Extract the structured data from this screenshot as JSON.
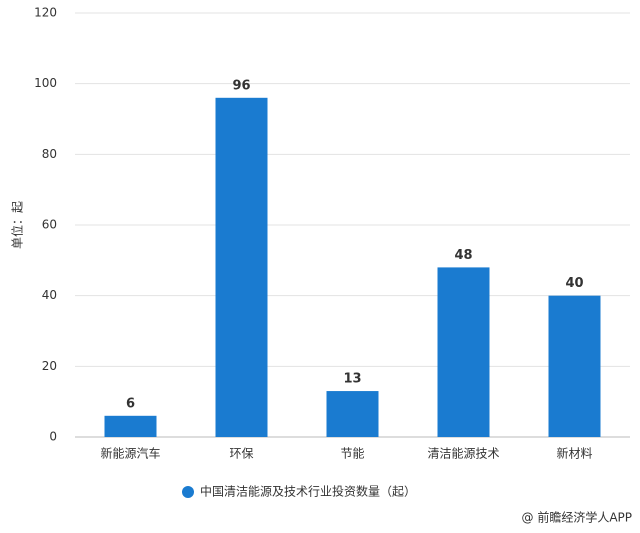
{
  "chart_data": {
    "type": "bar",
    "y_label": "单位：起",
    "categories": [
      "新能源汽车",
      "环保",
      "节能",
      "清洁能源技术",
      "新材料"
    ],
    "series": [
      {
        "name": "中国清洁能源及技术行业投资数量（起）",
        "color": "#1a7bd0",
        "values": [
          6,
          96,
          13,
          48,
          40
        ]
      }
    ],
    "ylim": [
      0,
      120
    ],
    "yticks": [
      0,
      20,
      40,
      60,
      80,
      100,
      120
    ],
    "grid": true,
    "source": "@ 前瞻经济学人APP"
  }
}
